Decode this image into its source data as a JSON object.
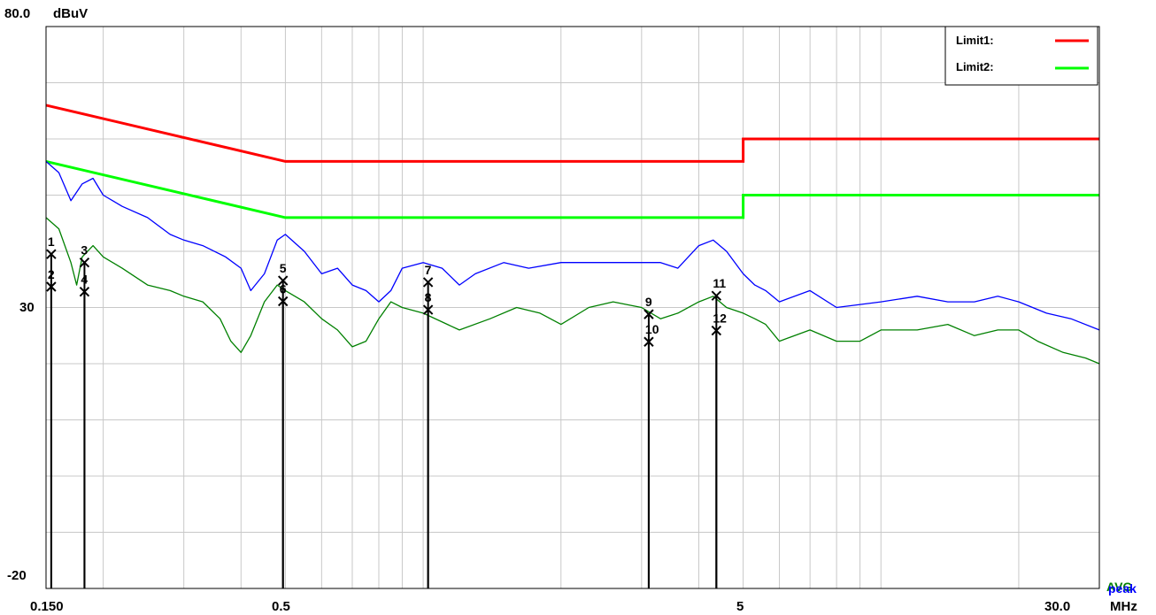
{
  "chart_data": {
    "type": "line",
    "x_scale": "log",
    "y_top_label": "80.0",
    "y_unit": "dBuV",
    "y_mid_label": "30",
    "y_bottom_label": "-20",
    "ylim": [
      -20,
      80
    ],
    "xlim": [
      0.15,
      30.0
    ],
    "x_ticks": [
      "0.150",
      "0.5",
      "5",
      "30.0"
    ],
    "x_unit": "MHz",
    "detectors": [
      {
        "label": "peak",
        "color": "#0000ff"
      },
      {
        "label": "AVG",
        "color": "#008000"
      }
    ],
    "grid": true,
    "limits": [
      {
        "name": "Limit1:",
        "color": "#ff0000",
        "points": [
          [
            0.15,
            66
          ],
          [
            0.5,
            56
          ],
          [
            5.0,
            56
          ],
          [
            5.0,
            60
          ],
          [
            30.0,
            60
          ]
        ]
      },
      {
        "name": "Limit2:",
        "color": "#00ff00",
        "points": [
          [
            0.15,
            56
          ],
          [
            0.5,
            46
          ],
          [
            5.0,
            46
          ],
          [
            5.0,
            50
          ],
          [
            30.0,
            50
          ]
        ]
      }
    ],
    "legend_position": "top-right",
    "series": [
      {
        "color": "#0000ff",
        "points": [
          [
            0.15,
            56
          ],
          [
            0.16,
            54
          ],
          [
            0.17,
            49
          ],
          [
            0.18,
            52
          ],
          [
            0.19,
            53
          ],
          [
            0.2,
            50
          ],
          [
            0.22,
            48
          ],
          [
            0.25,
            46
          ],
          [
            0.28,
            43
          ],
          [
            0.3,
            42
          ],
          [
            0.33,
            41
          ],
          [
            0.37,
            39
          ],
          [
            0.4,
            37
          ],
          [
            0.42,
            33
          ],
          [
            0.45,
            36
          ],
          [
            0.48,
            42
          ],
          [
            0.5,
            43
          ],
          [
            0.55,
            40
          ],
          [
            0.6,
            36
          ],
          [
            0.65,
            37
          ],
          [
            0.7,
            34
          ],
          [
            0.75,
            33
          ],
          [
            0.8,
            31
          ],
          [
            0.85,
            33
          ],
          [
            0.9,
            37
          ],
          [
            1.0,
            38
          ],
          [
            1.1,
            37
          ],
          [
            1.2,
            34
          ],
          [
            1.3,
            36
          ],
          [
            1.5,
            38
          ],
          [
            1.7,
            37
          ],
          [
            2.0,
            38
          ],
          [
            2.3,
            38
          ],
          [
            2.6,
            38
          ],
          [
            3.0,
            38
          ],
          [
            3.3,
            38
          ],
          [
            3.6,
            37
          ],
          [
            4.0,
            41
          ],
          [
            4.3,
            42
          ],
          [
            4.6,
            40
          ],
          [
            5.0,
            36
          ],
          [
            5.3,
            34
          ],
          [
            5.6,
            33
          ],
          [
            6.0,
            31
          ],
          [
            7.0,
            33
          ],
          [
            8.0,
            30
          ],
          [
            10.0,
            31
          ],
          [
            12.0,
            32
          ],
          [
            14.0,
            31
          ],
          [
            16.0,
            31
          ],
          [
            18.0,
            32
          ],
          [
            20.0,
            31
          ],
          [
            23.0,
            29
          ],
          [
            26.0,
            28
          ],
          [
            30.0,
            26
          ]
        ]
      },
      {
        "color": "#008000",
        "points": [
          [
            0.15,
            46
          ],
          [
            0.16,
            44
          ],
          [
            0.17,
            38
          ],
          [
            0.175,
            34
          ],
          [
            0.18,
            39
          ],
          [
            0.19,
            41
          ],
          [
            0.2,
            39
          ],
          [
            0.22,
            37
          ],
          [
            0.25,
            34
          ],
          [
            0.28,
            33
          ],
          [
            0.3,
            32
          ],
          [
            0.33,
            31
          ],
          [
            0.36,
            28
          ],
          [
            0.38,
            24
          ],
          [
            0.4,
            22
          ],
          [
            0.42,
            25
          ],
          [
            0.45,
            31
          ],
          [
            0.48,
            34
          ],
          [
            0.5,
            33
          ],
          [
            0.55,
            31
          ],
          [
            0.6,
            28
          ],
          [
            0.65,
            26
          ],
          [
            0.7,
            23
          ],
          [
            0.75,
            24
          ],
          [
            0.8,
            28
          ],
          [
            0.85,
            31
          ],
          [
            0.9,
            30
          ],
          [
            1.0,
            29
          ],
          [
            1.2,
            26
          ],
          [
            1.4,
            28
          ],
          [
            1.6,
            30
          ],
          [
            1.8,
            29
          ],
          [
            2.0,
            27
          ],
          [
            2.3,
            30
          ],
          [
            2.6,
            31
          ],
          [
            3.0,
            30
          ],
          [
            3.3,
            28
          ],
          [
            3.6,
            29
          ],
          [
            4.0,
            31
          ],
          [
            4.3,
            32
          ],
          [
            4.6,
            30
          ],
          [
            5.0,
            29
          ],
          [
            5.3,
            28
          ],
          [
            5.6,
            27
          ],
          [
            6.0,
            24
          ],
          [
            7.0,
            26
          ],
          [
            8.0,
            24
          ],
          [
            9.0,
            24
          ],
          [
            10.0,
            26
          ],
          [
            12.0,
            26
          ],
          [
            14.0,
            27
          ],
          [
            16.0,
            25
          ],
          [
            18.0,
            26
          ],
          [
            20.0,
            26
          ],
          [
            22.0,
            24
          ],
          [
            25.0,
            22
          ],
          [
            28.0,
            21
          ],
          [
            30.0,
            20
          ]
        ]
      }
    ],
    "markers": [
      {
        "label": "1",
        "x": 0.154,
        "y": 39.5
      },
      {
        "label": "2",
        "x": 0.154,
        "y": 33.7
      },
      {
        "label": "3",
        "x": 0.182,
        "y": 38.0
      },
      {
        "label": "4",
        "x": 0.182,
        "y": 32.8
      },
      {
        "label": "5",
        "x": 0.494,
        "y": 34.8
      },
      {
        "label": "6",
        "x": 0.494,
        "y": 31.1
      },
      {
        "label": "7",
        "x": 1.025,
        "y": 34.5
      },
      {
        "label": "8",
        "x": 1.025,
        "y": 29.6
      },
      {
        "label": "9",
        "x": 3.11,
        "y": 28.8
      },
      {
        "label": "10",
        "x": 3.11,
        "y": 23.9
      },
      {
        "label": "11",
        "x": 4.37,
        "y": 32.1
      },
      {
        "label": "12",
        "x": 4.37,
        "y": 25.9
      }
    ]
  }
}
